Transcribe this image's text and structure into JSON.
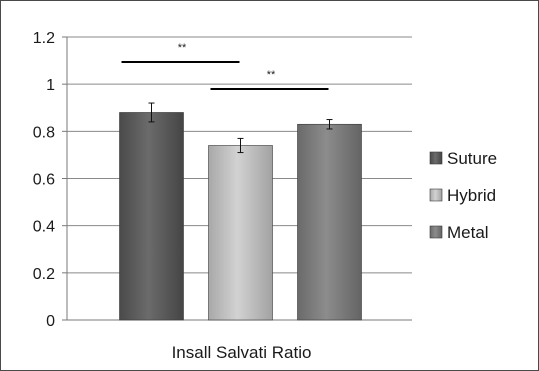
{
  "chart_data": {
    "type": "bar",
    "title": "",
    "xlabel": "",
    "ylabel": "",
    "categories": [
      "Insall Salvati Ratio"
    ],
    "ylim": [
      0,
      1.2
    ],
    "yticks": [
      "0",
      "0.2",
      "0.4",
      "0.6",
      "0.8",
      "1",
      "1.2"
    ],
    "grid": true,
    "legend_position": "right",
    "series": [
      {
        "name": "Suture",
        "values": [
          0.88
        ],
        "error": [
          0.04
        ],
        "color": "#5a5a5a"
      },
      {
        "name": "Hybrid",
        "values": [
          0.74
        ],
        "error": [
          0.03
        ],
        "color": "#b8b8b8"
      },
      {
        "name": "Metal",
        "values": [
          0.83
        ],
        "error": [
          0.02
        ],
        "color": "#7a7a7a"
      }
    ],
    "annotations": [
      {
        "text": "**",
        "between": [
          "Suture",
          "Hybrid"
        ]
      },
      {
        "text": "**",
        "between": [
          "Hybrid",
          "Metal"
        ]
      }
    ]
  }
}
